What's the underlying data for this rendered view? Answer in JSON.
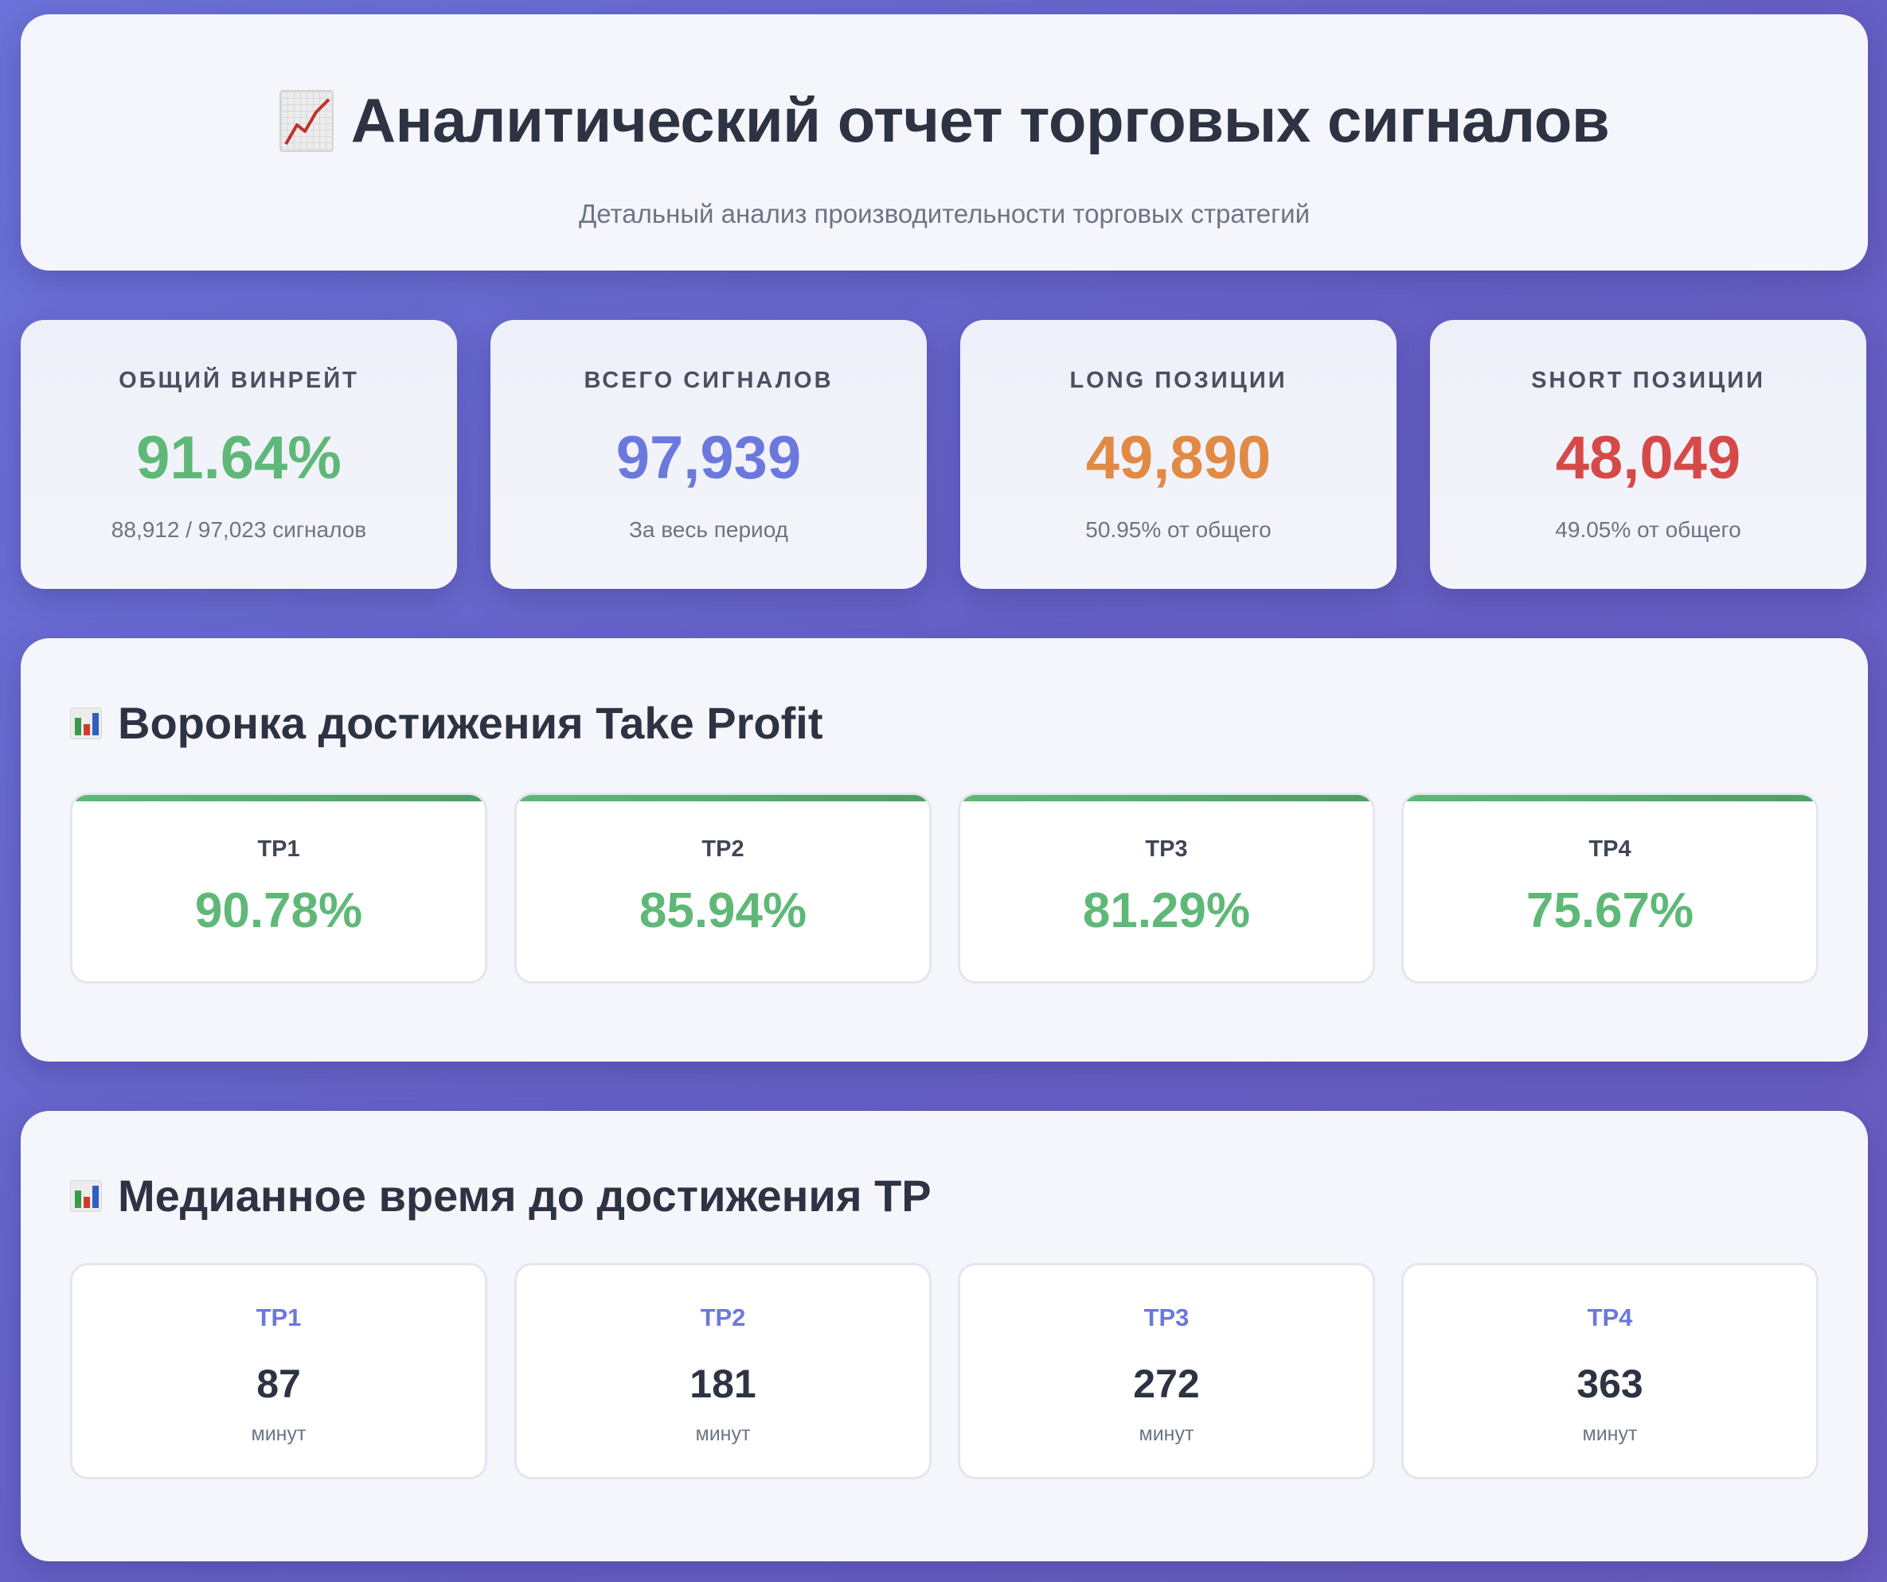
{
  "header": {
    "title": "Аналитический отчет торговых сигналов",
    "subtitle": "Детальный анализ производительности торговых стратегий",
    "icon": "chart-increasing-icon"
  },
  "stats": [
    {
      "label": "Общий винрейт",
      "value": "91.64%",
      "sub": "88,912 / 97,023 сигналов",
      "color": "#5fb877"
    },
    {
      "label": "Всего сигналов",
      "value": "97,939",
      "sub": "За весь период",
      "color": "#6b78dc"
    },
    {
      "label": "Long позиции",
      "value": "49,890",
      "sub": "50.95% от общего",
      "color": "#e08a45"
    },
    {
      "label": "Short позиции",
      "value": "48,049",
      "sub": "49.05% от общего",
      "color": "#d54a48"
    }
  ],
  "funnel": {
    "title": "Воронка достижения Take Profit",
    "icon": "bar-chart-icon",
    "items": [
      {
        "label": "TP1",
        "value": "90.78%"
      },
      {
        "label": "TP2",
        "value": "85.94%"
      },
      {
        "label": "TP3",
        "value": "81.29%"
      },
      {
        "label": "TP4",
        "value": "75.67%"
      }
    ]
  },
  "median_time": {
    "title": "Медианное время до достижения TP",
    "icon": "bar-chart-icon",
    "items": [
      {
        "label": "TP1",
        "value": "87",
        "unit": "минут"
      },
      {
        "label": "TP2",
        "value": "181",
        "unit": "минут"
      },
      {
        "label": "TP3",
        "value": "272",
        "unit": "минут"
      },
      {
        "label": "TP4",
        "value": "363",
        "unit": "минут"
      }
    ]
  }
}
